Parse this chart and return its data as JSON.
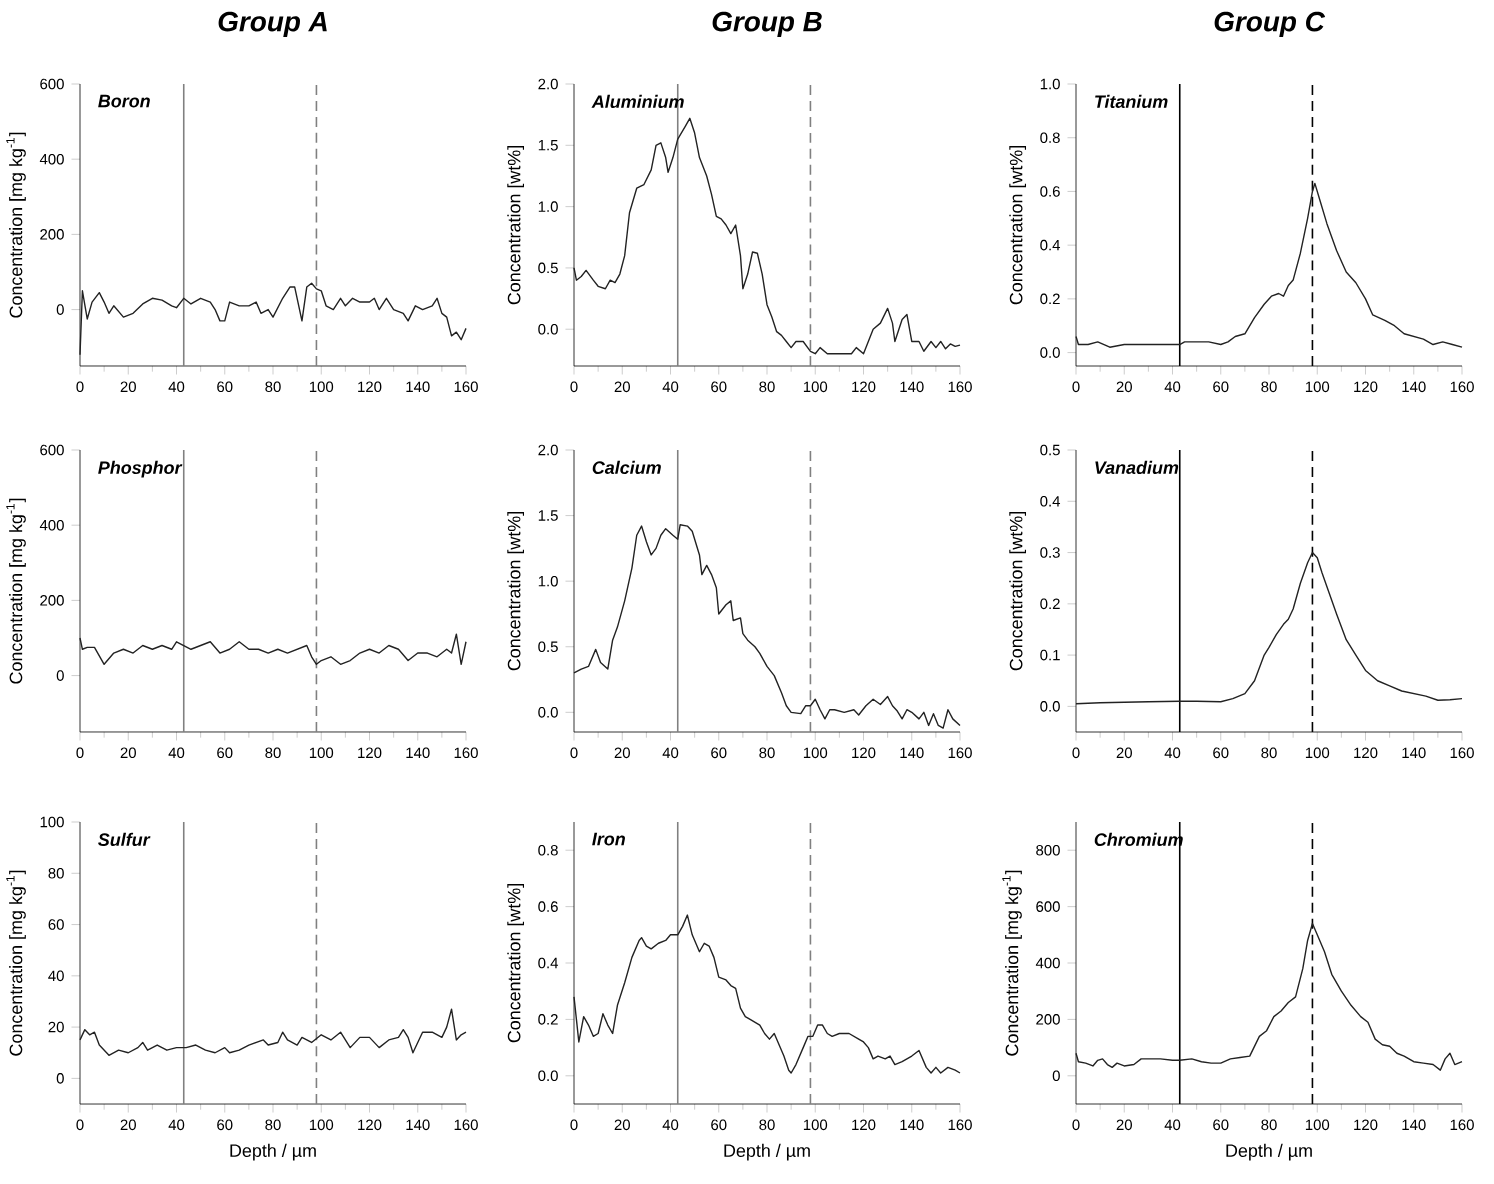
{
  "chart_data": [
    {
      "type": "line",
      "title": "Group A",
      "annotations": [
        "Boron"
      ],
      "ylabel": "Concentration [mg kg$^{-1}$]",
      "color": "#222222",
      "x": [
        0,
        1,
        3,
        5,
        8,
        10,
        12,
        14,
        18,
        22,
        26,
        30,
        34,
        38,
        40,
        43,
        46,
        50,
        54,
        56,
        58,
        60,
        62,
        66,
        70,
        73,
        75,
        78,
        80,
        84,
        87,
        89,
        91,
        92,
        94,
        96,
        98,
        100,
        102,
        105,
        108,
        110,
        113,
        116,
        120,
        122,
        124,
        127,
        130,
        134,
        136,
        139,
        142,
        146,
        148,
        150,
        152,
        154,
        156,
        158,
        160
      ],
      "values": [
        -120,
        50,
        -25,
        20,
        45,
        20,
        -10,
        10,
        -20,
        -10,
        15,
        30,
        25,
        10,
        5,
        30,
        15,
        30,
        20,
        0,
        -30,
        -30,
        20,
        10,
        10,
        20,
        -10,
        0,
        -20,
        30,
        60,
        60,
        0,
        -30,
        60,
        70,
        55,
        50,
        10,
        0,
        30,
        10,
        30,
        20,
        20,
        30,
        0,
        30,
        0,
        -10,
        -30,
        10,
        0,
        10,
        30,
        -10,
        -20,
        -70,
        -60,
        -80,
        -50
      ],
      "xlim": [
        0,
        160
      ],
      "xticks": [
        0,
        20,
        40,
        60,
        80,
        100,
        120,
        140,
        160
      ],
      "ylim": [
        -150,
        600
      ],
      "yticks": [
        0,
        200,
        400,
        600
      ],
      "ref_lines": [
        {
          "axis": "x",
          "value": 43,
          "color": "#808080",
          "line_style": "solid"
        },
        {
          "axis": "x",
          "value": 98,
          "color": "#808080",
          "line_style": "dashed"
        }
      ]
    },
    {
      "type": "line",
      "title": "Group B",
      "annotations": [
        "Aluminium"
      ],
      "ylabel": "Concentration [wt%]",
      "color": "#222222",
      "x": [
        0,
        1,
        3,
        5,
        8,
        10,
        13,
        15,
        17,
        19,
        21,
        23,
        26,
        29,
        32,
        34,
        36,
        38,
        39,
        41,
        43,
        46,
        48,
        50,
        52,
        55,
        57,
        59,
        61,
        63,
        65,
        67,
        69,
        70,
        72,
        74,
        76,
        78,
        80,
        82,
        84,
        86,
        88,
        90,
        92,
        95,
        98,
        100,
        102,
        105,
        110,
        115,
        117,
        120,
        124,
        127,
        130,
        132,
        133,
        136,
        138,
        140,
        143,
        145,
        148,
        150,
        152,
        154,
        156,
        158,
        160
      ],
      "values": [
        0.5,
        0.4,
        0.43,
        0.48,
        0.4,
        0.35,
        0.33,
        0.4,
        0.38,
        0.45,
        0.6,
        0.95,
        1.15,
        1.18,
        1.3,
        1.5,
        1.52,
        1.4,
        1.28,
        1.4,
        1.55,
        1.65,
        1.72,
        1.6,
        1.4,
        1.25,
        1.1,
        0.92,
        0.9,
        0.85,
        0.78,
        0.85,
        0.6,
        0.33,
        0.45,
        0.63,
        0.62,
        0.45,
        0.2,
        0.1,
        -0.02,
        -0.05,
        -0.1,
        -0.15,
        -0.1,
        -0.1,
        -0.18,
        -0.2,
        -0.15,
        -0.2,
        -0.2,
        -0.2,
        -0.15,
        -0.2,
        0,
        0.05,
        0.17,
        0.05,
        -0.1,
        0.08,
        0.12,
        -0.1,
        -0.1,
        -0.18,
        -0.1,
        -0.15,
        -0.1,
        -0.16,
        -0.12,
        -0.14,
        -0.13
      ],
      "xlim": [
        0,
        160
      ],
      "xticks": [
        0,
        20,
        40,
        60,
        80,
        100,
        120,
        140,
        160
      ],
      "ylim": [
        -0.3,
        2.0
      ],
      "yticks": [
        {
          "value": 0,
          "label": "0.0"
        },
        {
          "value": 0.5,
          "label": "0.5"
        },
        {
          "value": 1,
          "label": "1.0"
        },
        {
          "value": 1.5,
          "label": "1.5"
        },
        {
          "value": 2,
          "label": "2.0"
        }
      ],
      "ref_lines": [
        {
          "axis": "x",
          "value": 43,
          "color": "#808080",
          "line_style": "solid"
        },
        {
          "axis": "x",
          "value": 98,
          "color": "#808080",
          "line_style": "dashed"
        }
      ]
    },
    {
      "type": "line",
      "title": "Group C",
      "annotations": [
        "Titanium"
      ],
      "ylabel": "Concentration [wt%]",
      "color": "#222222",
      "x": [
        0,
        1,
        5,
        9,
        14,
        20,
        30,
        40,
        43,
        45,
        50,
        55,
        60,
        63,
        66,
        70,
        74,
        78,
        81,
        84,
        86,
        88,
        90,
        93,
        96,
        98,
        99,
        101,
        104,
        108,
        112,
        116,
        120,
        123,
        128,
        132,
        136,
        140,
        144,
        148,
        152,
        156,
        160
      ],
      "values": [
        0.06,
        0.03,
        0.03,
        0.04,
        0.02,
        0.03,
        0.03,
        0.03,
        0.03,
        0.04,
        0.04,
        0.04,
        0.03,
        0.04,
        0.06,
        0.07,
        0.13,
        0.18,
        0.21,
        0.22,
        0.21,
        0.25,
        0.27,
        0.37,
        0.5,
        0.6,
        0.63,
        0.57,
        0.48,
        0.38,
        0.3,
        0.26,
        0.2,
        0.14,
        0.12,
        0.1,
        0.07,
        0.06,
        0.05,
        0.03,
        0.04,
        0.03,
        0.02
      ],
      "xlim": [
        0,
        160
      ],
      "xticks": [
        0,
        20,
        40,
        60,
        80,
        100,
        120,
        140,
        160
      ],
      "ylim": [
        -0.05,
        1.0
      ],
      "yticks": [
        {
          "value": 0,
          "label": "0.0"
        },
        {
          "value": 0.2,
          "label": "0.2"
        },
        {
          "value": 0.4,
          "label": "0.4"
        },
        {
          "value": 0.6,
          "label": "0.6"
        },
        {
          "value": 0.8,
          "label": "0.8"
        },
        {
          "value": 1,
          "label": "1.0"
        }
      ],
      "ref_lines": [
        {
          "axis": "x",
          "value": 43,
          "color": "#000000",
          "line_style": "solid"
        },
        {
          "axis": "x",
          "value": 98,
          "color": "#000000",
          "line_style": "dashed"
        }
      ]
    },
    {
      "type": "line",
      "annotations": [
        "Phosphor"
      ],
      "ylabel": "Concentration [mg kg$^{-1}$]",
      "color": "#222222",
      "x": [
        0,
        1,
        3,
        6,
        10,
        14,
        18,
        22,
        26,
        30,
        34,
        38,
        40,
        43,
        46,
        50,
        54,
        58,
        62,
        66,
        70,
        74,
        78,
        82,
        86,
        90,
        94,
        96,
        98,
        100,
        104,
        108,
        112,
        116,
        120,
        124,
        128,
        132,
        136,
        140,
        144,
        148,
        152,
        154,
        156,
        158,
        160
      ],
      "values": [
        100,
        70,
        75,
        75,
        30,
        60,
        70,
        60,
        80,
        70,
        80,
        70,
        90,
        80,
        70,
        80,
        90,
        60,
        70,
        90,
        70,
        70,
        60,
        70,
        60,
        70,
        80,
        50,
        30,
        40,
        50,
        30,
        40,
        60,
        70,
        60,
        80,
        70,
        40,
        60,
        60,
        50,
        70,
        60,
        110,
        30,
        90
      ],
      "xlim": [
        0,
        160
      ],
      "xticks": [
        0,
        20,
        40,
        60,
        80,
        100,
        120,
        140,
        160
      ],
      "ylim": [
        -150,
        600
      ],
      "yticks": [
        0,
        200,
        400,
        600
      ],
      "ref_lines": [
        {
          "axis": "x",
          "value": 43,
          "color": "#808080",
          "line_style": "solid"
        },
        {
          "axis": "x",
          "value": 98,
          "color": "#808080",
          "line_style": "dashed"
        }
      ]
    },
    {
      "type": "line",
      "annotations": [
        "Calcium"
      ],
      "ylabel": "Concentration [wt%]",
      "color": "#222222",
      "x": [
        0,
        3,
        6,
        9,
        11,
        14,
        16,
        18,
        21,
        24,
        26,
        28,
        30,
        32,
        34,
        36,
        38,
        41,
        43,
        44,
        47,
        49,
        52,
        53,
        55,
        57,
        59,
        60,
        63,
        65,
        66,
        69,
        70,
        72,
        75,
        77,
        80,
        83,
        86,
        88,
        90,
        94,
        96,
        98,
        100,
        102,
        104,
        106,
        108,
        112,
        116,
        118,
        121,
        124,
        127,
        130,
        132,
        134,
        136,
        138,
        140,
        143,
        145,
        147,
        149,
        151,
        153,
        155,
        157,
        160
      ],
      "values": [
        0.3,
        0.33,
        0.35,
        0.48,
        0.38,
        0.33,
        0.55,
        0.65,
        0.85,
        1.1,
        1.35,
        1.42,
        1.3,
        1.2,
        1.25,
        1.35,
        1.4,
        1.35,
        1.32,
        1.43,
        1.42,
        1.38,
        1.2,
        1.05,
        1.12,
        1.05,
        0.95,
        0.75,
        0.82,
        0.85,
        0.7,
        0.72,
        0.6,
        0.55,
        0.5,
        0.45,
        0.35,
        0.28,
        0.15,
        0.05,
        0,
        -0.01,
        0.05,
        0.05,
        0.1,
        0.02,
        -0.05,
        0.02,
        0.02,
        0,
        0.02,
        -0.02,
        0.05,
        0.1,
        0.06,
        0.12,
        0.05,
        0.01,
        -0.05,
        0.02,
        0,
        -0.05,
        0,
        -0.1,
        -0.01,
        -0.1,
        -0.12,
        0.02,
        -0.05,
        -0.1
      ],
      "xlim": [
        0,
        160
      ],
      "xticks": [
        0,
        20,
        40,
        60,
        80,
        100,
        120,
        140,
        160
      ],
      "ylim": [
        -0.15,
        2.0
      ],
      "yticks": [
        {
          "value": 0,
          "label": "0.0"
        },
        {
          "value": 0.5,
          "label": "0.5"
        },
        {
          "value": 1,
          "label": "1.0"
        },
        {
          "value": 1.5,
          "label": "1.5"
        },
        {
          "value": 2,
          "label": "2.0"
        }
      ],
      "ref_lines": [
        {
          "axis": "x",
          "value": 43,
          "color": "#808080",
          "line_style": "solid"
        },
        {
          "axis": "x",
          "value": 98,
          "color": "#808080",
          "line_style": "dashed"
        }
      ]
    },
    {
      "type": "line",
      "annotations": [
        "Vanadium"
      ],
      "ylabel": "Concentration [wt%]",
      "color": "#222222",
      "x": [
        0,
        10,
        20,
        30,
        43,
        50,
        60,
        65,
        70,
        74,
        78,
        80,
        83,
        86,
        88,
        90,
        93,
        96,
        98,
        100,
        102,
        105,
        108,
        112,
        116,
        120,
        125,
        130,
        135,
        140,
        145,
        150,
        155,
        160
      ],
      "values": [
        0.005,
        0.007,
        0.008,
        0.009,
        0.01,
        0.01,
        0.009,
        0.015,
        0.025,
        0.05,
        0.1,
        0.115,
        0.14,
        0.16,
        0.17,
        0.19,
        0.24,
        0.28,
        0.3,
        0.29,
        0.26,
        0.22,
        0.18,
        0.13,
        0.1,
        0.07,
        0.05,
        0.04,
        0.03,
        0.025,
        0.02,
        0.012,
        0.013,
        0.015
      ],
      "xlim": [
        0,
        160
      ],
      "xticks": [
        0,
        20,
        40,
        60,
        80,
        100,
        120,
        140,
        160
      ],
      "ylim": [
        -0.05,
        0.5
      ],
      "yticks": [
        {
          "value": 0,
          "label": "0.0"
        },
        {
          "value": 0.1,
          "label": "0.1"
        },
        {
          "value": 0.2,
          "label": "0.2"
        },
        {
          "value": 0.3,
          "label": "0.3"
        },
        {
          "value": 0.4,
          "label": "0.4"
        },
        {
          "value": 0.5,
          "label": "0.5"
        }
      ],
      "ref_lines": [
        {
          "axis": "x",
          "value": 43,
          "color": "#000000",
          "line_style": "solid"
        },
        {
          "axis": "x",
          "value": 98,
          "color": "#000000",
          "line_style": "dashed"
        }
      ]
    },
    {
      "type": "line",
      "annotations": [
        "Sulfur"
      ],
      "xlabel": "Depth / µm",
      "ylabel": "Concentration [mg kg$^{-1}$]",
      "color": "#222222",
      "x": [
        0,
        2,
        4,
        6,
        8,
        12,
        16,
        20,
        24,
        26,
        28,
        32,
        36,
        40,
        44,
        48,
        52,
        56,
        60,
        62,
        66,
        70,
        76,
        78,
        82,
        84,
        86,
        90,
        92,
        96,
        100,
        104,
        108,
        112,
        116,
        120,
        124,
        128,
        132,
        134,
        136,
        138,
        140,
        142,
        146,
        150,
        152,
        154,
        156,
        158,
        160
      ],
      "values": [
        15,
        19,
        17,
        18,
        13,
        9,
        11,
        10,
        12,
        14,
        11,
        13,
        11,
        12,
        12,
        13,
        11,
        10,
        12,
        10,
        11,
        13,
        15,
        13,
        14,
        18,
        15,
        13,
        16,
        14,
        17,
        15,
        18,
        12,
        16,
        16,
        12,
        15,
        16,
        19,
        16,
        10,
        14,
        18,
        18,
        16,
        20,
        27,
        15,
        17,
        18
      ],
      "xlim": [
        0,
        160
      ],
      "xticks": [
        0,
        20,
        40,
        60,
        80,
        100,
        120,
        140,
        160
      ],
      "ylim": [
        -10,
        100
      ],
      "yticks": [
        0,
        20,
        40,
        60,
        80,
        100
      ],
      "ref_lines": [
        {
          "axis": "x",
          "value": 43,
          "color": "#808080",
          "line_style": "solid"
        },
        {
          "axis": "x",
          "value": 98,
          "color": "#808080",
          "line_style": "dashed"
        }
      ]
    },
    {
      "type": "line",
      "annotations": [
        "Iron"
      ],
      "xlabel": "Depth / µm",
      "ylabel": "Concentration [wt%]",
      "color": "#222222",
      "x": [
        0,
        1,
        2,
        4,
        6,
        8,
        10,
        12,
        14,
        16,
        18,
        21,
        24,
        27,
        28,
        30,
        32,
        35,
        38,
        40,
        43,
        45,
        47,
        49,
        52,
        54,
        56,
        58,
        60,
        63,
        65,
        67,
        69,
        71,
        73,
        75,
        77,
        79,
        81,
        83,
        85,
        87,
        89,
        90,
        92,
        95,
        97,
        99,
        101,
        103,
        105,
        107,
        110,
        114,
        118,
        120,
        122,
        124,
        126,
        129,
        131,
        133,
        136,
        140,
        143,
        146,
        148,
        150,
        152,
        155,
        158,
        160
      ],
      "values": [
        0.28,
        0.2,
        0.12,
        0.21,
        0.18,
        0.14,
        0.15,
        0.22,
        0.18,
        0.15,
        0.25,
        0.33,
        0.42,
        0.48,
        0.49,
        0.46,
        0.45,
        0.47,
        0.48,
        0.5,
        0.5,
        0.53,
        0.57,
        0.5,
        0.44,
        0.47,
        0.46,
        0.42,
        0.35,
        0.34,
        0.32,
        0.31,
        0.24,
        0.21,
        0.2,
        0.19,
        0.18,
        0.15,
        0.13,
        0.15,
        0.11,
        0.07,
        0.02,
        0.01,
        0.04,
        0.1,
        0.14,
        0.14,
        0.18,
        0.18,
        0.15,
        0.14,
        0.15,
        0.15,
        0.13,
        0.12,
        0.1,
        0.06,
        0.07,
        0.06,
        0.07,
        0.04,
        0.05,
        0.07,
        0.09,
        0.03,
        0.01,
        0.03,
        0.01,
        0.03,
        0.02,
        0.01
      ],
      "xlim": [
        0,
        160
      ],
      "xticks": [
        0,
        20,
        40,
        60,
        80,
        100,
        120,
        140,
        160
      ],
      "ylim": [
        -0.1,
        0.9
      ],
      "yticks": [
        {
          "value": 0,
          "label": "0.0"
        },
        {
          "value": 0.2,
          "label": "0.2"
        },
        {
          "value": 0.4,
          "label": "0.4"
        },
        {
          "value": 0.6,
          "label": "0.6"
        },
        {
          "value": 0.8,
          "label": "0.8"
        }
      ],
      "ref_lines": [
        {
          "axis": "x",
          "value": 43,
          "color": "#808080",
          "line_style": "solid"
        },
        {
          "axis": "x",
          "value": 98,
          "color": "#808080",
          "line_style": "dashed"
        }
      ]
    },
    {
      "type": "line",
      "annotations": [
        "Chromium"
      ],
      "xlabel": "Depth / µm",
      "ylabel": "Concentration [mg kg$^{-1}$]",
      "color": "#222222",
      "x": [
        0,
        1,
        4,
        7,
        9,
        11,
        13,
        15,
        17,
        20,
        24,
        27,
        30,
        35,
        40,
        43,
        48,
        52,
        56,
        60,
        64,
        68,
        72,
        76,
        79,
        82,
        85,
        88,
        91,
        94,
        96,
        98,
        100,
        103,
        106,
        110,
        114,
        118,
        121,
        124,
        127,
        130,
        133,
        136,
        140,
        144,
        148,
        151,
        153,
        155,
        157,
        160
      ],
      "values": [
        80,
        50,
        45,
        35,
        55,
        60,
        40,
        30,
        45,
        35,
        40,
        60,
        60,
        60,
        55,
        55,
        60,
        50,
        45,
        45,
        60,
        65,
        70,
        140,
        160,
        210,
        230,
        260,
        280,
        380,
        480,
        540,
        500,
        440,
        360,
        300,
        250,
        210,
        190,
        130,
        110,
        105,
        80,
        70,
        50,
        45,
        40,
        20,
        60,
        80,
        40,
        50
      ],
      "xlim": [
        0,
        160
      ],
      "xticks": [
        0,
        20,
        40,
        60,
        80,
        100,
        120,
        140,
        160
      ],
      "ylim": [
        -100,
        900
      ],
      "yticks": [
        0,
        200,
        400,
        600,
        800
      ],
      "ref_lines": [
        {
          "axis": "x",
          "value": 43,
          "color": "#000000",
          "line_style": "solid"
        },
        {
          "axis": "x",
          "value": 98,
          "color": "#000000",
          "line_style": "dashed"
        }
      ]
    }
  ]
}
